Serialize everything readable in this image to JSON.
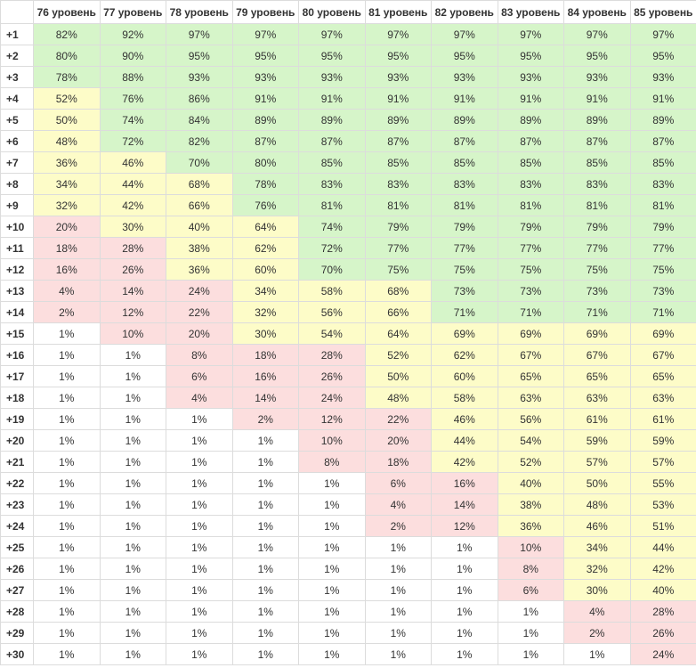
{
  "columns": [
    "76 уровень",
    "77 уровень",
    "78 уровень",
    "79 уровень",
    "80 уровень",
    "81 уровень",
    "82 уровень",
    "83 уровень",
    "84 уровень",
    "85 уровень"
  ],
  "colors": {
    "green": "#d6f5c9",
    "yellow": "#fdfcc8",
    "red": "#fcdede",
    "white": "#ffffff"
  },
  "rows": [
    {
      "label": "+1",
      "values": [
        "82%",
        "92%",
        "97%",
        "97%",
        "97%",
        "97%",
        "97%",
        "97%",
        "97%",
        "97%"
      ],
      "colors": "gggggggggg"
    },
    {
      "label": "+2",
      "values": [
        "80%",
        "90%",
        "95%",
        "95%",
        "95%",
        "95%",
        "95%",
        "95%",
        "95%",
        "95%"
      ],
      "colors": "gggggggggg"
    },
    {
      "label": "+3",
      "values": [
        "78%",
        "88%",
        "93%",
        "93%",
        "93%",
        "93%",
        "93%",
        "93%",
        "93%",
        "93%"
      ],
      "colors": "gggggggggg"
    },
    {
      "label": "+4",
      "values": [
        "52%",
        "76%",
        "86%",
        "91%",
        "91%",
        "91%",
        "91%",
        "91%",
        "91%",
        "91%"
      ],
      "colors": "yggggggggg"
    },
    {
      "label": "+5",
      "values": [
        "50%",
        "74%",
        "84%",
        "89%",
        "89%",
        "89%",
        "89%",
        "89%",
        "89%",
        "89%"
      ],
      "colors": "yggggggggg"
    },
    {
      "label": "+6",
      "values": [
        "48%",
        "72%",
        "82%",
        "87%",
        "87%",
        "87%",
        "87%",
        "87%",
        "87%",
        "87%"
      ],
      "colors": "yggggggggg"
    },
    {
      "label": "+7",
      "values": [
        "36%",
        "46%",
        "70%",
        "80%",
        "85%",
        "85%",
        "85%",
        "85%",
        "85%",
        "85%"
      ],
      "colors": "yygggggggg"
    },
    {
      "label": "+8",
      "values": [
        "34%",
        "44%",
        "68%",
        "78%",
        "83%",
        "83%",
        "83%",
        "83%",
        "83%",
        "83%"
      ],
      "colors": "yyyggggggg"
    },
    {
      "label": "+9",
      "values": [
        "32%",
        "42%",
        "66%",
        "76%",
        "81%",
        "81%",
        "81%",
        "81%",
        "81%",
        "81%"
      ],
      "colors": "yyyggggggg"
    },
    {
      "label": "+10",
      "values": [
        "20%",
        "30%",
        "40%",
        "64%",
        "74%",
        "79%",
        "79%",
        "79%",
        "79%",
        "79%"
      ],
      "colors": "ryyygggggg"
    },
    {
      "label": "+11",
      "values": [
        "18%",
        "28%",
        "38%",
        "62%",
        "72%",
        "77%",
        "77%",
        "77%",
        "77%",
        "77%"
      ],
      "colors": "rryygggggg"
    },
    {
      "label": "+12",
      "values": [
        "16%",
        "26%",
        "36%",
        "60%",
        "70%",
        "75%",
        "75%",
        "75%",
        "75%",
        "75%"
      ],
      "colors": "rryygggggg"
    },
    {
      "label": "+13",
      "values": [
        "4%",
        "14%",
        "24%",
        "34%",
        "58%",
        "68%",
        "73%",
        "73%",
        "73%",
        "73%"
      ],
      "colors": "rrryyygggg"
    },
    {
      "label": "+14",
      "values": [
        "2%",
        "12%",
        "22%",
        "32%",
        "56%",
        "66%",
        "71%",
        "71%",
        "71%",
        "71%"
      ],
      "colors": "rrryyygggg"
    },
    {
      "label": "+15",
      "values": [
        "1%",
        "10%",
        "20%",
        "30%",
        "54%",
        "64%",
        "69%",
        "69%",
        "69%",
        "69%"
      ],
      "colors": "wrryyyyyyy"
    },
    {
      "label": "+16",
      "values": [
        "1%",
        "1%",
        "8%",
        "18%",
        "28%",
        "52%",
        "62%",
        "67%",
        "67%",
        "67%"
      ],
      "colors": "wwrrryyyyy"
    },
    {
      "label": "+17",
      "values": [
        "1%",
        "1%",
        "6%",
        "16%",
        "26%",
        "50%",
        "60%",
        "65%",
        "65%",
        "65%"
      ],
      "colors": "wwrrryyyyy"
    },
    {
      "label": "+18",
      "values": [
        "1%",
        "1%",
        "4%",
        "14%",
        "24%",
        "48%",
        "58%",
        "63%",
        "63%",
        "63%"
      ],
      "colors": "wwrrryyyyy"
    },
    {
      "label": "+19",
      "values": [
        "1%",
        "1%",
        "1%",
        "2%",
        "12%",
        "22%",
        "46%",
        "56%",
        "61%",
        "61%"
      ],
      "colors": "wwwrrryyyy"
    },
    {
      "label": "+20",
      "values": [
        "1%",
        "1%",
        "1%",
        "1%",
        "10%",
        "20%",
        "44%",
        "54%",
        "59%",
        "59%"
      ],
      "colors": "wwwwrryyyy"
    },
    {
      "label": "+21",
      "values": [
        "1%",
        "1%",
        "1%",
        "1%",
        "8%",
        "18%",
        "42%",
        "52%",
        "57%",
        "57%"
      ],
      "colors": "wwwwrryyyy"
    },
    {
      "label": "+22",
      "values": [
        "1%",
        "1%",
        "1%",
        "1%",
        "1%",
        "6%",
        "16%",
        "40%",
        "50%",
        "55%"
      ],
      "colors": "wwwwwrryyy"
    },
    {
      "label": "+23",
      "values": [
        "1%",
        "1%",
        "1%",
        "1%",
        "1%",
        "4%",
        "14%",
        "38%",
        "48%",
        "53%"
      ],
      "colors": "wwwwwrryyy"
    },
    {
      "label": "+24",
      "values": [
        "1%",
        "1%",
        "1%",
        "1%",
        "1%",
        "2%",
        "12%",
        "36%",
        "46%",
        "51%"
      ],
      "colors": "wwwwwrryyy"
    },
    {
      "label": "+25",
      "values": [
        "1%",
        "1%",
        "1%",
        "1%",
        "1%",
        "1%",
        "1%",
        "10%",
        "34%",
        "44%"
      ],
      "colors": "wwwwwwwryy"
    },
    {
      "label": "+26",
      "values": [
        "1%",
        "1%",
        "1%",
        "1%",
        "1%",
        "1%",
        "1%",
        "8%",
        "32%",
        "42%"
      ],
      "colors": "wwwwwwwryy"
    },
    {
      "label": "+27",
      "values": [
        "1%",
        "1%",
        "1%",
        "1%",
        "1%",
        "1%",
        "1%",
        "6%",
        "30%",
        "40%"
      ],
      "colors": "wwwwwwwryy"
    },
    {
      "label": "+28",
      "values": [
        "1%",
        "1%",
        "1%",
        "1%",
        "1%",
        "1%",
        "1%",
        "1%",
        "4%",
        "28%"
      ],
      "colors": "wwwwwwwwrr"
    },
    {
      "label": "+29",
      "values": [
        "1%",
        "1%",
        "1%",
        "1%",
        "1%",
        "1%",
        "1%",
        "1%",
        "2%",
        "26%"
      ],
      "colors": "wwwwwwwwrr"
    },
    {
      "label": "+30",
      "values": [
        "1%",
        "1%",
        "1%",
        "1%",
        "1%",
        "1%",
        "1%",
        "1%",
        "1%",
        "24%"
      ],
      "colors": "wwwwwwwwwr"
    }
  ]
}
